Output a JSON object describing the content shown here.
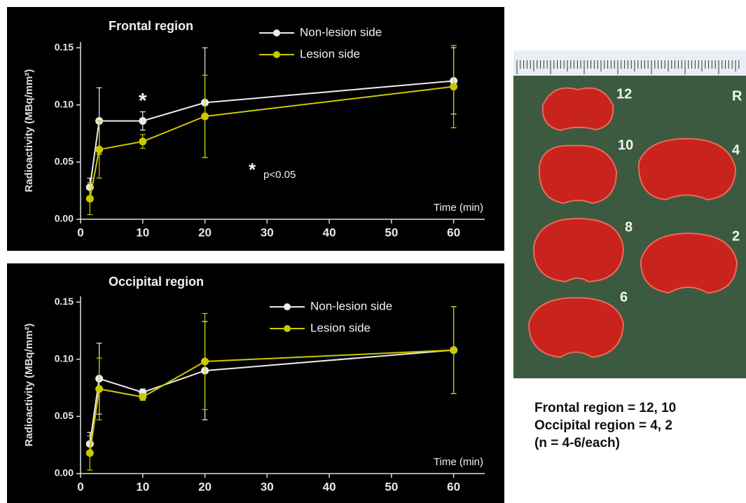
{
  "chart_data": [
    {
      "type": "line",
      "title": "Frontal region",
      "x_label": "Time (min)",
      "y_label": "Radioactivity (MBq/mm²)",
      "x": [
        1.5,
        3,
        10,
        20,
        60
      ],
      "series": [
        {
          "name": "Non-lesion side",
          "color": "#ececec",
          "values": [
            0.028,
            0.086,
            0.086,
            0.102,
            0.121
          ],
          "errors": [
            0.008,
            0.029,
            0.008,
            0.048,
            0.029
          ]
        },
        {
          "name": "Lesion side",
          "color": "#c9c900",
          "values": [
            0.018,
            0.061,
            0.068,
            0.09,
            0.116
          ],
          "errors": [
            0.014,
            0.025,
            0.006,
            0.036,
            0.036
          ]
        }
      ],
      "xlim": [
        0,
        65
      ],
      "xticks": [
        0,
        10,
        20,
        30,
        40,
        50,
        60
      ],
      "ylim": [
        0,
        0.155
      ],
      "yticks": [
        {
          "value": 0,
          "label": "0.00"
        },
        0.05,
        {
          "value": 0.1,
          "label": "0.10"
        },
        0.15
      ],
      "significance_marker": "*",
      "significance_note": "p<0.05",
      "legend": "upper center"
    },
    {
      "type": "line",
      "title": "Occipital region",
      "x_label": "Time (min)",
      "y_label": "Radioactivity (MBq/mm²)",
      "x": [
        1.5,
        3,
        10,
        20,
        60
      ],
      "series": [
        {
          "name": "Non-lesion side",
          "color": "#ececec",
          "values": [
            0.026,
            0.083,
            0.071,
            0.09,
            0.108
          ],
          "errors": [
            0.01,
            0.031,
            0.003,
            0.043,
            0.038
          ]
        },
        {
          "name": "Lesion side",
          "color": "#c9c900",
          "values": [
            0.018,
            0.074,
            0.067,
            0.098,
            0.108
          ],
          "errors": [
            0.015,
            0.027,
            0.003,
            0.042,
            0.038
          ]
        }
      ],
      "xlim": [
        0,
        65
      ],
      "xticks": [
        0,
        10,
        20,
        30,
        40,
        50,
        60
      ],
      "ylim": [
        0,
        0.155
      ],
      "yticks": [
        {
          "value": 0,
          "label": "0.00"
        },
        0.05,
        {
          "value": 0.1,
          "label": "0.10"
        },
        0.15
      ],
      "legend": "upper center"
    }
  ],
  "photo": {
    "labels": [
      "12",
      "R",
      "10",
      "4",
      "8",
      "2",
      "6"
    ]
  },
  "caption": [
    "Frontal region = 12, 10",
    "Occipital region = 4, 2",
    "(n = 4-6/each)"
  ]
}
